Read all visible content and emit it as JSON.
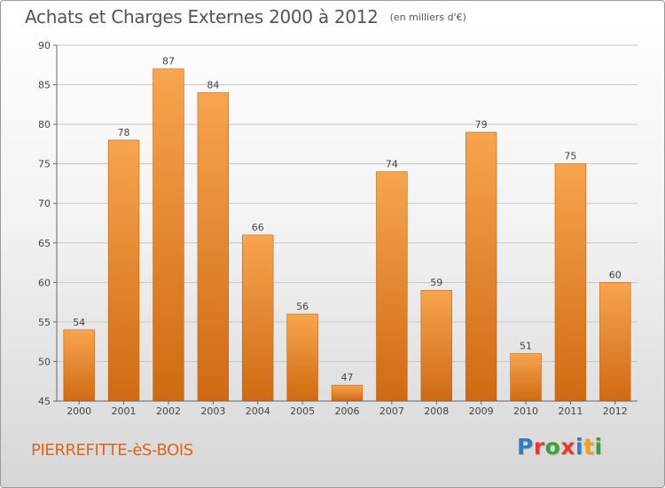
{
  "header": {
    "title": "Achats et Charges Externes 2000 à 2012",
    "subtitle": "(en milliers d'€)"
  },
  "footer": {
    "commune": "PIERREFITTE-èS-BOIS",
    "brand": {
      "text": "Proxiti",
      "letters": [
        {
          "char": "P",
          "color": "#2f7fc1"
        },
        {
          "char": "r",
          "color": "#e23b2e"
        },
        {
          "char": "o",
          "color": "#3aa03a"
        },
        {
          "char": "x",
          "color": "#e23b2e"
        },
        {
          "char": "i",
          "color": "#2f7fc1"
        },
        {
          "char": "t",
          "color": "#f0a020"
        },
        {
          "char": "i",
          "color": "#3aa03a"
        }
      ]
    }
  },
  "chart_data": {
    "type": "bar",
    "title": "Achats et Charges Externes 2000 à 2012",
    "subtitle": "(en milliers d'€)",
    "xlabel": "",
    "ylabel": "",
    "categories": [
      "2000",
      "2001",
      "2002",
      "2003",
      "2004",
      "2005",
      "2006",
      "2007",
      "2008",
      "2009",
      "2010",
      "2011",
      "2012"
    ],
    "values": [
      54,
      78,
      87,
      84,
      66,
      56,
      47,
      74,
      59,
      79,
      51,
      75,
      60
    ],
    "ylim": [
      45,
      90
    ],
    "yticks": [
      45,
      50,
      55,
      60,
      65,
      70,
      75,
      80,
      85,
      90
    ],
    "grid": true,
    "data_labels": true,
    "colors": {
      "bar_top": "#f7a54e",
      "bar_bottom": "#cf6a12",
      "grid": "#c8c8c8",
      "axis_text": "#444444"
    }
  }
}
